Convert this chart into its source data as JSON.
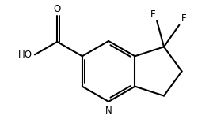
{
  "bg_color": "#ffffff",
  "bond_color": "#000000",
  "bond_width": 1.5,
  "font_size": 8.5,
  "figsize": [
    2.64,
    1.7
  ],
  "dpi": 100,
  "xlim": [
    0,
    10
  ],
  "ylim": [
    0,
    6.5
  ]
}
